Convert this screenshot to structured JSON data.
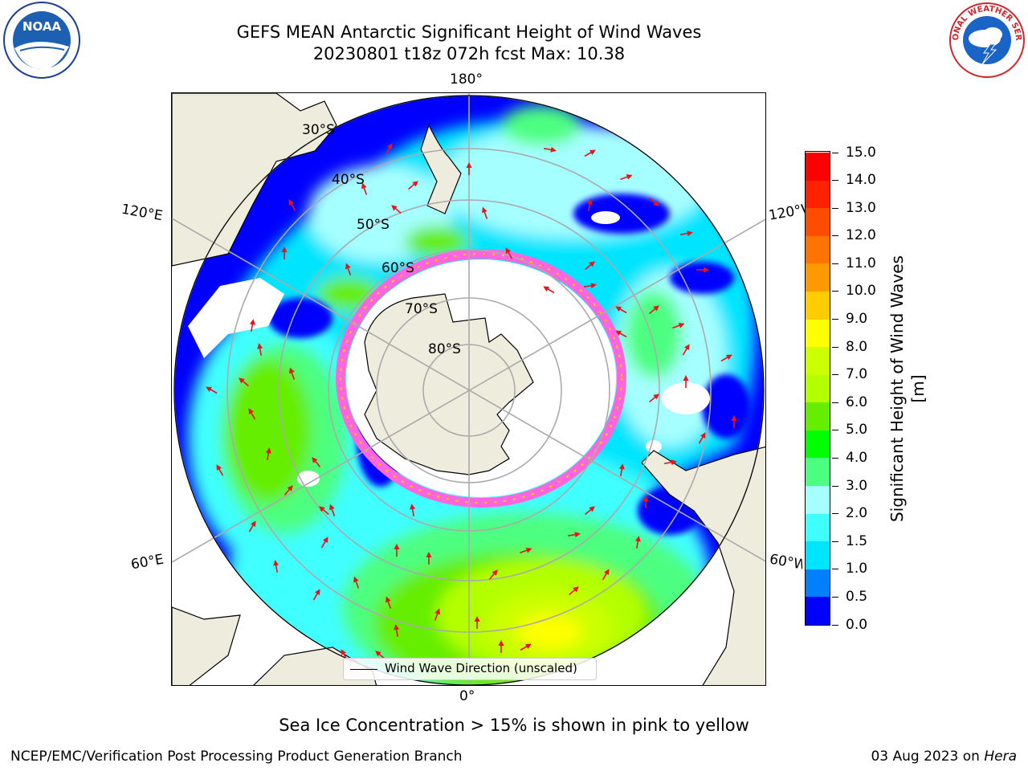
{
  "header": {
    "title_line1": "GEFS MEAN Antarctic Significant Height of Wind Waves",
    "title_line2": "20230801 t18z 072h fcst   Max: 10.38"
  },
  "logos": {
    "noaa_text": "NOAA",
    "noaa_ring_text": "NATIONAL OCEANIC AND ATMOSPHERIC ADMINISTRATION · U.S. DEPARTMENT OF COMMERCE",
    "nws_ring_text": "NATIONAL WEATHER SERVICE"
  },
  "map": {
    "projection": "south polar stereographic",
    "longitude_labels": {
      "top": "180°",
      "bottom": "0°",
      "left_upper": "120°E",
      "left_lower": "60°E",
      "right_upper": "120°W",
      "right_lower": "60°W"
    },
    "latitude_labels": [
      "30°S",
      "40°S",
      "50°S",
      "60°S",
      "70°S",
      "80°S"
    ],
    "land_color": "#eeecdc",
    "arrow_color": "#e8141a"
  },
  "colorbar": {
    "title": "Significant Height of Wind Waves [m]",
    "ticks": [
      "0.0",
      "0.5",
      "1.0",
      "1.5",
      "2.0",
      "3.0",
      "4.0",
      "5.0",
      "6.0",
      "7.0",
      "8.0",
      "9.0",
      "10.0",
      "11.0",
      "12.0",
      "13.0",
      "14.0",
      "15.0"
    ],
    "colors": [
      "#0000ff",
      "#0080ff",
      "#00e5ff",
      "#40ffff",
      "#a6ffff",
      "#4dff80",
      "#00ff00",
      "#66ee00",
      "#b3ff00",
      "#ccff00",
      "#ffff00",
      "#ffcc00",
      "#ff9900",
      "#ff7300",
      "#ff4d00",
      "#ff2200",
      "#ff0000"
    ]
  },
  "legend": {
    "label": "Wind Wave Direction (unscaled)"
  },
  "notes": {
    "sea_ice": "Sea Ice Concentration > 15% is shown in pink to yellow"
  },
  "footer": {
    "left": "NCEP/EMC/Verification Post Processing Product Generation Branch",
    "date": "03 Aug 2023 on ",
    "system": "Hera"
  }
}
